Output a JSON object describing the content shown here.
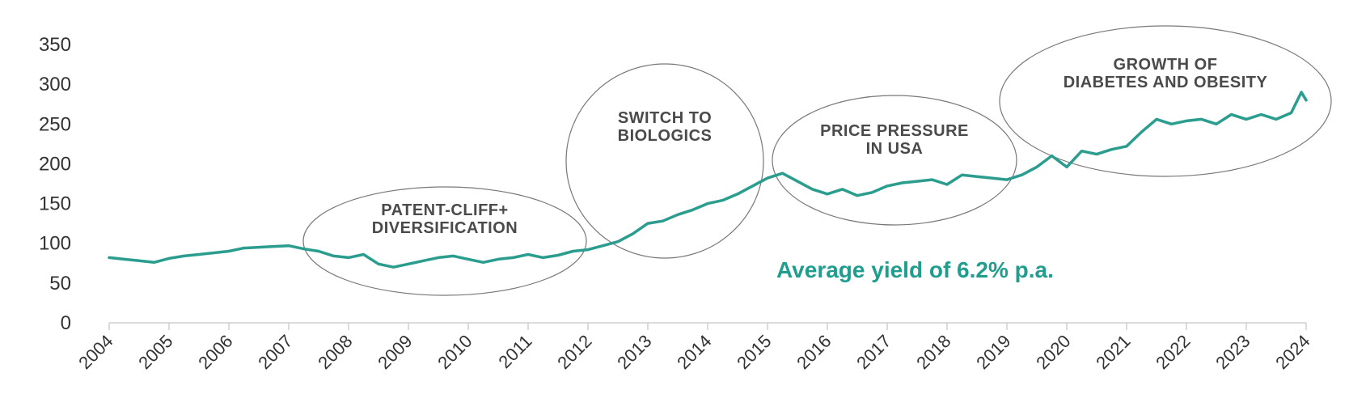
{
  "colors": {
    "series": "#2a9d8f",
    "headline": "#1f9e8f"
  },
  "headline": "Average yield of 6.2% p.a.",
  "annotations": [
    {
      "id": "patent",
      "lines": [
        "PATENT-CLIFF+",
        "DIVERSIFICATION"
      ]
    },
    {
      "id": "biologics",
      "lines": [
        "SWITCH TO",
        "BIOLOGICS"
      ]
    },
    {
      "id": "price",
      "lines": [
        "PRICE PRESSURE",
        "IN USA"
      ]
    },
    {
      "id": "diabetes",
      "lines": [
        "GROWTH OF",
        "DIABETES AND OBESITY"
      ]
    }
  ],
  "chart_data": {
    "type": "line",
    "title": "",
    "xlabel": "",
    "ylabel": "",
    "xlim": [
      2004,
      2024
    ],
    "ylim": [
      0,
      350
    ],
    "yticks": [
      "0",
      "50",
      "100",
      "150",
      "200",
      "250",
      "300",
      "350"
    ],
    "xticks": [
      "2004",
      "2005",
      "2006",
      "2007",
      "2008",
      "2009",
      "2010",
      "2011",
      "2012",
      "2013",
      "2014",
      "2015",
      "2016",
      "2017",
      "2018",
      "2019",
      "2020",
      "2021",
      "2022",
      "2023",
      "2024"
    ],
    "grid": false,
    "legend": "none",
    "series": [
      {
        "x": [
          2004.0,
          2004.25,
          2004.5,
          2004.75,
          2005.0,
          2005.25,
          2005.5,
          2005.75,
          2006.0,
          2006.25,
          2006.5,
          2006.75,
          2007.0,
          2007.25,
          2007.5,
          2007.75,
          2008.0,
          2008.25,
          2008.5,
          2008.75,
          2009.0,
          2009.25,
          2009.5,
          2009.75,
          2010.0,
          2010.25,
          2010.5,
          2010.75,
          2011.0,
          2011.25,
          2011.5,
          2011.75,
          2012.0,
          2012.25,
          2012.5,
          2012.75,
          2013.0,
          2013.25,
          2013.5,
          2013.75,
          2014.0,
          2014.25,
          2014.5,
          2014.75,
          2015.0,
          2015.25,
          2015.5,
          2015.75,
          2016.0,
          2016.25,
          2016.5,
          2016.75,
          2017.0,
          2017.25,
          2017.5,
          2017.75,
          2018.0,
          2018.25,
          2018.5,
          2018.75,
          2019.0,
          2019.25,
          2019.5,
          2019.75,
          2020.0,
          2020.25,
          2020.5,
          2020.75,
          2021.0,
          2021.25,
          2021.5,
          2021.75,
          2022.0,
          2022.25,
          2022.5,
          2022.75,
          2023.0,
          2023.25,
          2023.5,
          2023.75,
          2023.92,
          2024.0
        ],
        "values": [
          82,
          80,
          78,
          76,
          81,
          84,
          86,
          88,
          90,
          94,
          95,
          96,
          97,
          93,
          90,
          84,
          82,
          86,
          74,
          70,
          74,
          78,
          82,
          84,
          80,
          76,
          80,
          82,
          86,
          82,
          85,
          90,
          92,
          97,
          102,
          112,
          125,
          128,
          136,
          142,
          150,
          154,
          162,
          172,
          182,
          188,
          178,
          168,
          162,
          168,
          160,
          164,
          172,
          176,
          178,
          180,
          174,
          186,
          184,
          182,
          180,
          186,
          196,
          210,
          196,
          216,
          212,
          218,
          222,
          240,
          256,
          250,
          254,
          256,
          250,
          262,
          256,
          262,
          256,
          264,
          290,
          280
        ]
      }
    ]
  }
}
